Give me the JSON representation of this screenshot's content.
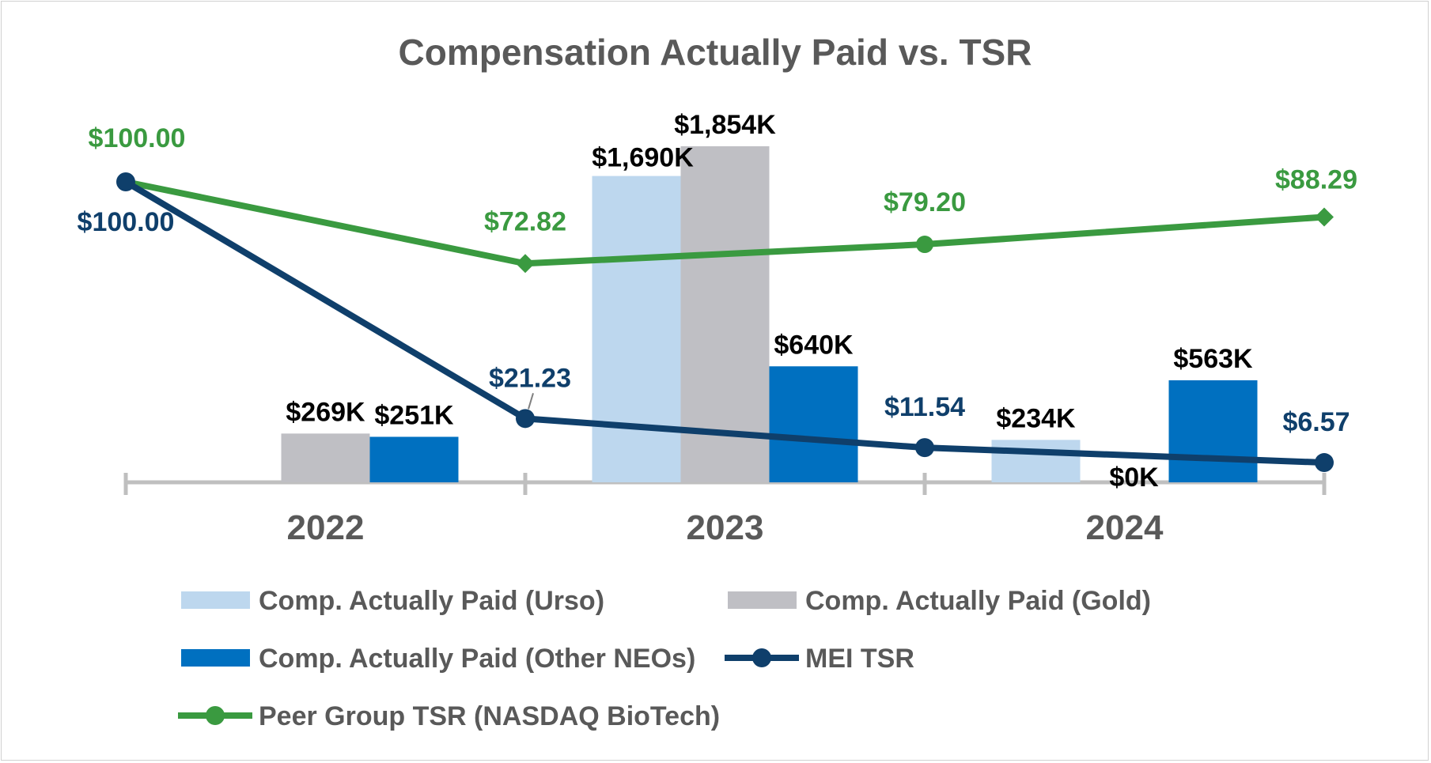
{
  "chart_data": {
    "type": "bar",
    "title": "Compensation Actually Paid vs. TSR",
    "categories": [
      "2022",
      "2023",
      "2024"
    ],
    "bar_ylim": [
      0,
      2000
    ],
    "line_ylim": [
      0,
      150
    ],
    "series": [
      {
        "name": "Comp. Actually Paid (Urso)",
        "kind": "bar",
        "color": "#bdd7ee",
        "values": [
          null,
          1690,
          234
        ],
        "labels": [
          "",
          "$1,690K",
          "$234K"
        ]
      },
      {
        "name": "Comp. Actually Paid (Gold)",
        "kind": "bar",
        "color": "#bfbfc4",
        "values": [
          269,
          1854,
          0
        ],
        "labels": [
          "$269K",
          "$1,854K",
          "$0K"
        ]
      },
      {
        "name": "Comp. Actually Paid (Other NEOs)",
        "kind": "bar",
        "color": "#0070c0",
        "values": [
          251,
          640,
          563
        ],
        "labels": [
          "$251K",
          "$640K",
          "$563K"
        ]
      },
      {
        "name": "MEI TSR",
        "kind": "line",
        "color": "#0f3f6b",
        "x": [
          0,
          1,
          2,
          3
        ],
        "values": [
          100.0,
          21.23,
          11.54,
          6.57
        ],
        "labels": [
          "$100.00",
          "$21.23",
          "$11.54",
          "$6.57"
        ]
      },
      {
        "name": "Peer Group TSR (NASDAQ BioTech)",
        "kind": "line",
        "color": "#3a9a40",
        "x": [
          0,
          1,
          2,
          3
        ],
        "values": [
          100.0,
          72.82,
          79.2,
          88.29
        ],
        "labels": [
          "$100.00",
          "$72.82",
          "$79.20",
          "$88.29"
        ]
      }
    ],
    "legend": "bottom"
  }
}
